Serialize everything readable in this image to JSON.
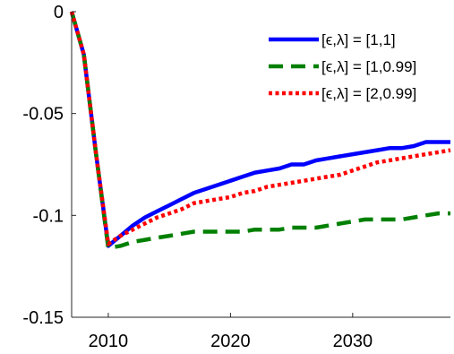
{
  "chart_data": {
    "type": "line",
    "title": "",
    "xlabel": "",
    "ylabel": "",
    "xlim": [
      2007,
      2038
    ],
    "ylim": [
      -0.15,
      0
    ],
    "xticks": [
      {
        "value": 2010,
        "label": "2010"
      },
      {
        "value": 2020,
        "label": "2020"
      },
      {
        "value": 2030,
        "label": "2030"
      }
    ],
    "yticks": [
      {
        "value": 0,
        "label": "0"
      },
      {
        "value": -0.05,
        "label": "-0.05"
      },
      {
        "value": -0.1,
        "label": "-0.1"
      },
      {
        "value": -0.15,
        "label": "-0.15"
      }
    ],
    "grid": false,
    "legend_position": "top-right",
    "series": [
      {
        "name": "[ϵ,λ] = [1,1]",
        "color": "#0000ff",
        "style": "solid",
        "points": [
          [
            2007,
            0
          ],
          [
            2008,
            -0.021
          ],
          [
            2009,
            -0.07
          ],
          [
            2010,
            -0.115
          ],
          [
            2011,
            -0.11
          ],
          [
            2012,
            -0.105
          ],
          [
            2013,
            -0.101
          ],
          [
            2014,
            -0.098
          ],
          [
            2015,
            -0.095
          ],
          [
            2016,
            -0.092
          ],
          [
            2017,
            -0.089
          ],
          [
            2018,
            -0.087
          ],
          [
            2019,
            -0.085
          ],
          [
            2020,
            -0.083
          ],
          [
            2021,
            -0.081
          ],
          [
            2022,
            -0.079
          ],
          [
            2023,
            -0.078
          ],
          [
            2024,
            -0.077
          ],
          [
            2025,
            -0.075
          ],
          [
            2026,
            -0.075
          ],
          [
            2027,
            -0.073
          ],
          [
            2028,
            -0.072
          ],
          [
            2029,
            -0.071
          ],
          [
            2030,
            -0.07
          ],
          [
            2031,
            -0.069
          ],
          [
            2032,
            -0.068
          ],
          [
            2033,
            -0.067
          ],
          [
            2034,
            -0.067
          ],
          [
            2035,
            -0.066
          ],
          [
            2036,
            -0.064
          ],
          [
            2037,
            -0.064
          ],
          [
            2038,
            -0.064
          ]
        ]
      },
      {
        "name": "[ϵ,λ] = [1,0.99]",
        "color": "#008000",
        "style": "dashed",
        "points": [
          [
            2007,
            0
          ],
          [
            2008,
            -0.021
          ],
          [
            2009,
            -0.07
          ],
          [
            2010,
            -0.116
          ],
          [
            2011,
            -0.115
          ],
          [
            2012,
            -0.113
          ],
          [
            2013,
            -0.112
          ],
          [
            2014,
            -0.111
          ],
          [
            2015,
            -0.11
          ],
          [
            2016,
            -0.109
          ],
          [
            2017,
            -0.108
          ],
          [
            2018,
            -0.108
          ],
          [
            2019,
            -0.108
          ],
          [
            2020,
            -0.108
          ],
          [
            2021,
            -0.108
          ],
          [
            2022,
            -0.107
          ],
          [
            2023,
            -0.107
          ],
          [
            2024,
            -0.107
          ],
          [
            2025,
            -0.106
          ],
          [
            2026,
            -0.106
          ],
          [
            2027,
            -0.106
          ],
          [
            2028,
            -0.105
          ],
          [
            2029,
            -0.104
          ],
          [
            2030,
            -0.103
          ],
          [
            2031,
            -0.102
          ],
          [
            2032,
            -0.102
          ],
          [
            2033,
            -0.102
          ],
          [
            2034,
            -0.102
          ],
          [
            2035,
            -0.101
          ],
          [
            2036,
            -0.1
          ],
          [
            2037,
            -0.099
          ],
          [
            2038,
            -0.099
          ]
        ]
      },
      {
        "name": "[ϵ,λ] = [2,0.99]",
        "color": "#ff0000",
        "style": "dotted",
        "points": [
          [
            2007,
            0
          ],
          [
            2008,
            -0.021
          ],
          [
            2009,
            -0.07
          ],
          [
            2010,
            -0.114
          ],
          [
            2011,
            -0.11
          ],
          [
            2012,
            -0.107
          ],
          [
            2013,
            -0.104
          ],
          [
            2014,
            -0.101
          ],
          [
            2015,
            -0.099
          ],
          [
            2016,
            -0.097
          ],
          [
            2017,
            -0.094
          ],
          [
            2018,
            -0.093
          ],
          [
            2019,
            -0.092
          ],
          [
            2020,
            -0.091
          ],
          [
            2021,
            -0.089
          ],
          [
            2022,
            -0.088
          ],
          [
            2023,
            -0.086
          ],
          [
            2024,
            -0.085
          ],
          [
            2025,
            -0.084
          ],
          [
            2026,
            -0.083
          ],
          [
            2027,
            -0.082
          ],
          [
            2028,
            -0.081
          ],
          [
            2029,
            -0.08
          ],
          [
            2030,
            -0.078
          ],
          [
            2031,
            -0.076
          ],
          [
            2032,
            -0.074
          ],
          [
            2033,
            -0.073
          ],
          [
            2034,
            -0.072
          ],
          [
            2035,
            -0.071
          ],
          [
            2036,
            -0.07
          ],
          [
            2037,
            -0.069
          ],
          [
            2038,
            -0.068
          ]
        ]
      }
    ]
  }
}
